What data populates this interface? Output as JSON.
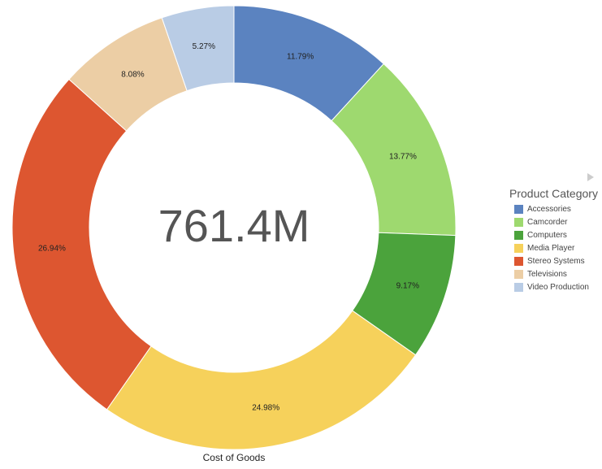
{
  "chart_data": {
    "type": "pie",
    "variant": "donut",
    "categories": [
      "Accessories",
      "Camcorder",
      "Computers",
      "Media Player",
      "Stereo Systems",
      "Televisions",
      "Video Production"
    ],
    "values": [
      11.79,
      13.77,
      9.17,
      24.98,
      26.94,
      8.08,
      5.27
    ],
    "data_labels": [
      "11.79%",
      "13.77%",
      "9.17%",
      "24.98%",
      "26.94%",
      "8.08%",
      "5.27%"
    ],
    "colors": [
      "#5b83c0",
      "#9ed96f",
      "#4ba33c",
      "#f6d15b",
      "#dd5630",
      "#eccea5",
      "#b9cce5"
    ],
    "center_label": "761.4M",
    "xlabel": "Cost of Goods",
    "legend_title": "Product Category",
    "legend_position": "right"
  }
}
